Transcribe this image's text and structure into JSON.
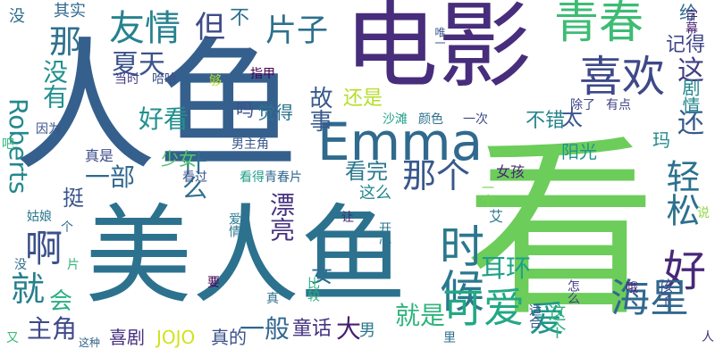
{
  "words": [
    {
      "text": "人鱼",
      "color": "#35608d",
      "rotate": false
    },
    {
      "text": "看",
      "color": "#6ccd5a",
      "rotate": false
    },
    {
      "text": "美人鱼",
      "color": "#2c728e",
      "rotate": false
    },
    {
      "text": "电影",
      "color": "#472d7b",
      "rotate": false
    },
    {
      "text": "Emma",
      "color": "#306a8e",
      "rotate": false
    },
    {
      "text": "青春",
      "color": "#3dbc74",
      "rotate": false
    },
    {
      "text": "喜欢",
      "color": "#3e4989",
      "rotate": false
    },
    {
      "text": "时候",
      "color": "#2a788e",
      "rotate": true
    },
    {
      "text": "好",
      "color": "#482878",
      "rotate": false
    },
    {
      "text": "海星",
      "color": "#31688e",
      "rotate": false
    },
    {
      "text": "可爱",
      "color": "#22a884",
      "rotate": false
    },
    {
      "text": "那个",
      "color": "#38588c",
      "rotate": false
    },
    {
      "text": "友情",
      "color": "#26828e",
      "rotate": false
    },
    {
      "text": "但",
      "color": "#3e4c8a",
      "rotate": false
    },
    {
      "text": "啊",
      "color": "#3b518b",
      "rotate": false
    },
    {
      "text": "就",
      "color": "#27808e",
      "rotate": false
    },
    {
      "text": "片子",
      "color": "#2d708e",
      "rotate": false
    },
    {
      "text": "轻松",
      "color": "#2c718e",
      "rotate": true
    },
    {
      "text": "这",
      "color": "#433e85",
      "rotate": false
    },
    {
      "text": "还",
      "color": "#375a8c",
      "rotate": false
    },
    {
      "text": "那",
      "color": "#2d718e",
      "rotate": false
    },
    {
      "text": "Roberts",
      "color": "#23898e",
      "rotate": true
    },
    {
      "text": "没有",
      "color": "#21908d",
      "rotate": true
    },
    {
      "text": "夏天",
      "color": "#3b528b",
      "rotate": false
    },
    {
      "text": "好看",
      "color": "#21918c",
      "rotate": false
    },
    {
      "text": "一部",
      "color": "#31688e",
      "rotate": false
    },
    {
      "text": "挺",
      "color": "#3a548c",
      "rotate": false
    },
    {
      "text": "什么",
      "color": "#2e6f8e",
      "rotate": true
    },
    {
      "text": "漂亮",
      "color": "#46337f",
      "rotate": true
    },
    {
      "text": "一般",
      "color": "#31678e",
      "rotate": false
    },
    {
      "text": "主角",
      "color": "#3e4989",
      "rotate": false
    },
    {
      "text": "喜剧",
      "color": "#472f7d",
      "rotate": false
    },
    {
      "text": "JOJO",
      "color": "#d2e21b",
      "rotate": false
    },
    {
      "text": "真的",
      "color": "#3b518b",
      "rotate": false
    },
    {
      "text": "童话",
      "color": "#453581",
      "rotate": false
    },
    {
      "text": "大",
      "color": "#481f70",
      "rotate": false
    },
    {
      "text": "男",
      "color": "#2a768e",
      "rotate": false
    },
    {
      "text": "就是",
      "color": "#2fb47c",
      "rotate": false
    },
    {
      "text": "爱",
      "color": "#1f968b",
      "rotate": false
    },
    {
      "text": "耳环",
      "color": "#1fa188",
      "rotate": false
    },
    {
      "text": "太",
      "color": "#3a548c",
      "rotate": false
    },
    {
      "text": "看完",
      "color": "#2a788e",
      "rotate": false
    },
    {
      "text": "故事",
      "color": "#38598c",
      "rotate": true
    },
    {
      "text": "还是",
      "color": "#b5de2b",
      "rotate": false
    },
    {
      "text": "觉得",
      "color": "#2c728e",
      "rotate": false
    },
    {
      "text": "吗",
      "color": "#3b518b",
      "rotate": false
    },
    {
      "text": "不",
      "color": "#2d708e",
      "rotate": false
    },
    {
      "text": "会",
      "color": "#29af7f",
      "rotate": false
    },
    {
      "text": "女",
      "color": "#2e6e8e",
      "rotate": false
    },
    {
      "text": "少女",
      "color": "#52c569",
      "rotate": false
    },
    {
      "text": "不错",
      "color": "#25848e",
      "rotate": false
    },
    {
      "text": "阳光",
      "color": "#1f958b",
      "rotate": false
    },
    {
      "text": "玛",
      "color": "#23898e",
      "rotate": false
    },
    {
      "text": "记得",
      "color": "#3f4788",
      "rotate": false
    },
    {
      "text": "给",
      "color": "#2f6c8e",
      "rotate": false
    },
    {
      "text": "剧情",
      "color": "#24878e",
      "rotate": true
    },
    {
      "text": "女孩",
      "color": "#482575",
      "rotate": false
    },
    {
      "text": "这么",
      "color": "#24868e",
      "rotate": false
    },
    {
      "text": "艾",
      "color": "#2a788e",
      "rotate": false
    },
    {
      "text": "一个",
      "color": "#7ad151",
      "rotate": true
    },
    {
      "text": "开心",
      "color": "#2c738e",
      "rotate": true
    },
    {
      "text": "让",
      "color": "#482576",
      "rotate": false
    },
    {
      "text": "爱情",
      "color": "#2a788e",
      "rotate": true
    },
    {
      "text": "看过",
      "color": "#3a548c",
      "rotate": false
    },
    {
      "text": "看得",
      "color": "#1e9c89",
      "rotate": false
    },
    {
      "text": "青春片",
      "color": "#31678e",
      "rotate": false
    },
    {
      "text": "男主角",
      "color": "#38598c",
      "rotate": false
    },
    {
      "text": "真是",
      "color": "#3d4e8a",
      "rotate": false
    },
    {
      "text": "指甲",
      "color": "#440154",
      "rotate": false
    },
    {
      "text": "颜色",
      "color": "#2c728e",
      "rotate": false
    },
    {
      "text": "一次",
      "color": "#3e4a89",
      "rotate": false
    },
    {
      "text": "沙滩",
      "color": "#1fa088",
      "rotate": false
    },
    {
      "text": "除了",
      "color": "#3f4889",
      "rotate": false
    },
    {
      "text": "有点",
      "color": "#424186",
      "rotate": false
    },
    {
      "text": "唯一",
      "color": "#39568c",
      "rotate": true
    },
    {
      "text": "当时",
      "color": "#423f85",
      "rotate": false
    },
    {
      "text": "哈哈",
      "color": "#3b528b",
      "rotate": false
    },
    {
      "text": "够",
      "color": "#b8de29",
      "rotate": false
    },
    {
      "text": "字幕",
      "color": "#482071",
      "rotate": true
    },
    {
      "text": "其实",
      "color": "#306a8e",
      "rotate": false
    },
    {
      "text": "没",
      "color": "#2e6f8e",
      "rotate": false
    },
    {
      "text": "因为",
      "color": "#3b528b",
      "rotate": false
    },
    {
      "text": "吧",
      "color": "#31b57b",
      "rotate": false
    },
    {
      "text": "姑娘",
      "color": "#2a778e",
      "rotate": false
    },
    {
      "text": "个",
      "color": "#2e6e8e",
      "rotate": false
    },
    {
      "text": "片",
      "color": "#31b57b",
      "rotate": false
    },
    {
      "text": "没",
      "color": "#2e6e8e",
      "rotate": false
    },
    {
      "text": "又",
      "color": "#37b878",
      "rotate": false
    },
    {
      "text": "这种",
      "color": "#32658e",
      "rotate": false
    },
    {
      "text": "要",
      "color": "#440154",
      "rotate": false
    },
    {
      "text": "真",
      "color": "#2c728e",
      "rotate": false
    },
    {
      "text": "比较",
      "color": "#29af7f",
      "rotate": true
    },
    {
      "text": "里",
      "color": "#2d708e",
      "rotate": false
    },
    {
      "text": "适合",
      "color": "#38598c",
      "rotate": true
    },
    {
      "text": "怎么",
      "color": "#433d84",
      "rotate": true
    },
    {
      "text": "这个",
      "color": "#2fb47c",
      "rotate": true
    },
    {
      "text": "哦",
      "color": "#482475",
      "rotate": false
    },
    {
      "text": "孩子",
      "color": "#3b518b",
      "rotate": true
    },
    {
      "text": "人",
      "color": "#46327e",
      "rotate": false
    },
    {
      "text": "说",
      "color": "#90d743",
      "rotate": false
    }
  ]
}
